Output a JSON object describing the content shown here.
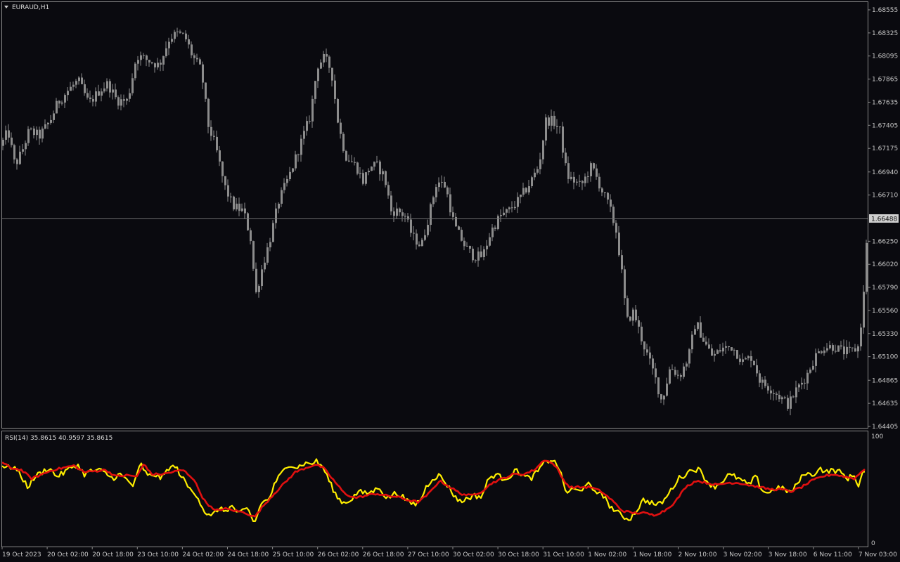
{
  "window": {
    "symbol_title": "EURAUD,H1",
    "title_arrow_icon": "triangle-down-icon"
  },
  "colors": {
    "background": "#0a0a0f",
    "frame": "#8a8a8a",
    "candle": "#8c8c8c",
    "candle_wick": "#8c8c8c",
    "bid_line": "#6e6e6e",
    "price_tag_bg": "#cfcfcf",
    "rsi_fast": "#ffee00",
    "rsi_slow": "#e01010"
  },
  "price_axis": {
    "min": 1.64405,
    "max": 1.68555,
    "ticks": [
      "1.68555",
      "1.68325",
      "1.68095",
      "1.67865",
      "1.67635",
      "1.67405",
      "1.67175",
      "1.66940",
      "1.66710",
      "1.66250",
      "1.66020",
      "1.65790",
      "1.65560",
      "1.65330",
      "1.65100",
      "1.64865",
      "1.64635",
      "1.64405"
    ],
    "current_price": "1.66488"
  },
  "rsi_panel": {
    "label": "RSI(14) 35.8615 40.9597 35.8615",
    "scale_max": "100",
    "scale_min": "0"
  },
  "time_axis": {
    "labels": [
      "19 Oct 2023",
      "20 Oct 02:00",
      "20 Oct 18:00",
      "23 Oct 10:00",
      "24 Oct 02:00",
      "24 Oct 18:00",
      "25 Oct 10:00",
      "26 Oct 02:00",
      "26 Oct 18:00",
      "27 Oct 10:00",
      "30 Oct 02:00",
      "30 Oct 18:00",
      "31 Oct 10:00",
      "1 Nov 02:00",
      "1 Nov 18:00",
      "2 Nov 10:00",
      "3 Nov 02:00",
      "3 Nov 18:00",
      "6 Nov 11:00",
      "7 Nov 03:00"
    ]
  },
  "chart_data": {
    "type": "candlestick",
    "symbol": "EURAUD",
    "timeframe": "H1",
    "ylim": [
      1.64405,
      1.68555
    ],
    "anchors": [
      [
        0,
        1.672
      ],
      [
        10,
        1.6735
      ],
      [
        20,
        1.67
      ],
      [
        30,
        1.6715
      ],
      [
        40,
        1.6735
      ],
      [
        55,
        1.673
      ],
      [
        70,
        1.6745
      ],
      [
        80,
        1.6762
      ],
      [
        95,
        1.6775
      ],
      [
        110,
        1.6785
      ],
      [
        125,
        1.6762
      ],
      [
        140,
        1.6775
      ],
      [
        152,
        1.6782
      ],
      [
        165,
        1.6765
      ],
      [
        180,
        1.6765
      ],
      [
        193,
        1.681
      ],
      [
        210,
        1.6805
      ],
      [
        225,
        1.68
      ],
      [
        240,
        1.6828
      ],
      [
        252,
        1.6832
      ],
      [
        262,
        1.6828
      ],
      [
        272,
        1.681
      ],
      [
        285,
        1.6795
      ],
      [
        295,
        1.674
      ],
      [
        305,
        1.672
      ],
      [
        318,
        1.668
      ],
      [
        330,
        1.666
      ],
      [
        345,
        1.6655
      ],
      [
        356,
        1.6625
      ],
      [
        362,
        1.657
      ],
      [
        372,
        1.66
      ],
      [
        382,
        1.6625
      ],
      [
        395,
        1.6665
      ],
      [
        410,
        1.669
      ],
      [
        425,
        1.672
      ],
      [
        440,
        1.675
      ],
      [
        450,
        1.68
      ],
      [
        460,
        1.6808
      ],
      [
        470,
        1.6795
      ],
      [
        480,
        1.674
      ],
      [
        490,
        1.671
      ],
      [
        505,
        1.67
      ],
      [
        515,
        1.6685
      ],
      [
        525,
        1.67
      ],
      [
        535,
        1.67
      ],
      [
        545,
        1.669
      ],
      [
        555,
        1.6655
      ],
      [
        565,
        1.6655
      ],
      [
        575,
        1.665
      ],
      [
        585,
        1.663
      ],
      [
        598,
        1.662
      ],
      [
        610,
        1.6655
      ],
      [
        620,
        1.6685
      ],
      [
        632,
        1.668
      ],
      [
        645,
        1.664
      ],
      [
        660,
        1.662
      ],
      [
        672,
        1.661
      ],
      [
        685,
        1.661
      ],
      [
        697,
        1.6635
      ],
      [
        710,
        1.665
      ],
      [
        722,
        1.6655
      ],
      [
        735,
        1.6665
      ],
      [
        750,
        1.668
      ],
      [
        765,
        1.67
      ],
      [
        775,
        1.6745
      ],
      [
        785,
        1.6745
      ],
      [
        795,
        1.6735
      ],
      [
        805,
        1.669
      ],
      [
        815,
        1.6685
      ],
      [
        825,
        1.668
      ],
      [
        840,
        1.67
      ],
      [
        855,
        1.6675
      ],
      [
        865,
        1.666
      ],
      [
        875,
        1.6635
      ],
      [
        882,
        1.66
      ],
      [
        890,
        1.6545
      ],
      [
        900,
        1.6555
      ],
      [
        910,
        1.653
      ],
      [
        920,
        1.651
      ],
      [
        930,
        1.649
      ],
      [
        940,
        1.6465
      ],
      [
        952,
        1.65
      ],
      [
        965,
        1.649
      ],
      [
        978,
        1.651
      ],
      [
        988,
        1.6545
      ],
      [
        1000,
        1.6525
      ],
      [
        1012,
        1.651
      ],
      [
        1025,
        1.6518
      ],
      [
        1040,
        1.652
      ],
      [
        1055,
        1.6505
      ],
      [
        1068,
        1.651
      ],
      [
        1080,
        1.6485
      ],
      [
        1095,
        1.6478
      ],
      [
        1108,
        1.647
      ],
      [
        1120,
        1.6462
      ],
      [
        1132,
        1.6478
      ],
      [
        1145,
        1.649
      ],
      [
        1158,
        1.651
      ],
      [
        1170,
        1.652
      ],
      [
        1185,
        1.652
      ],
      [
        1198,
        1.6515
      ],
      [
        1210,
        1.6515
      ],
      [
        1220,
        1.652
      ],
      [
        1228,
        1.658
      ],
      [
        1231,
        1.6625
      ]
    ],
    "rsi": {
      "period": 14,
      "values_shown": [
        35.8615,
        40.9597,
        35.8615
      ],
      "ylim": [
        0,
        100
      ],
      "fast_anchors": [
        [
          0,
          73
        ],
        [
          10,
          70
        ],
        [
          20,
          71
        ],
        [
          30,
          62
        ],
        [
          40,
          52
        ],
        [
          50,
          62
        ],
        [
          60,
          66
        ],
        [
          70,
          70
        ],
        [
          80,
          62
        ],
        [
          90,
          65
        ],
        [
          100,
          70
        ],
        [
          110,
          73
        ],
        [
          120,
          64
        ],
        [
          130,
          67
        ],
        [
          140,
          68
        ],
        [
          150,
          65
        ],
        [
          160,
          60
        ],
        [
          170,
          64
        ],
        [
          180,
          59
        ],
        [
          190,
          53
        ],
        [
          200,
          74
        ],
        [
          210,
          62
        ],
        [
          220,
          64
        ],
        [
          230,
          60
        ],
        [
          240,
          70
        ],
        [
          250,
          71
        ],
        [
          260,
          60
        ],
        [
          270,
          50
        ],
        [
          280,
          45
        ],
        [
          290,
          30
        ],
        [
          300,
          24
        ],
        [
          310,
          32
        ],
        [
          320,
          30
        ],
        [
          330,
          34
        ],
        [
          340,
          27
        ],
        [
          352,
          32
        ],
        [
          362,
          18
        ],
        [
          372,
          38
        ],
        [
          382,
          40
        ],
        [
          392,
          57
        ],
        [
          402,
          66
        ],
        [
          412,
          74
        ],
        [
          422,
          70
        ],
        [
          432,
          74
        ],
        [
          442,
          74
        ],
        [
          450,
          76
        ],
        [
          460,
          70
        ],
        [
          470,
          55
        ],
        [
          480,
          42
        ],
        [
          490,
          37
        ],
        [
          500,
          41
        ],
        [
          510,
          48
        ],
        [
          520,
          46
        ],
        [
          530,
          48
        ],
        [
          540,
          52
        ],
        [
          550,
          41
        ],
        [
          560,
          46
        ],
        [
          570,
          45
        ],
        [
          580,
          38
        ],
        [
          590,
          36
        ],
        [
          598,
          40
        ],
        [
          606,
          52
        ],
        [
          615,
          60
        ],
        [
          625,
          63
        ],
        [
          635,
          55
        ],
        [
          645,
          45
        ],
        [
          655,
          38
        ],
        [
          665,
          42
        ],
        [
          675,
          44
        ],
        [
          685,
          43
        ],
        [
          695,
          60
        ],
        [
          705,
          64
        ],
        [
          715,
          60
        ],
        [
          725,
          62
        ],
        [
          735,
          68
        ],
        [
          745,
          62
        ],
        [
          755,
          60
        ],
        [
          765,
          67
        ],
        [
          775,
          75
        ],
        [
          785,
          78
        ],
        [
          795,
          70
        ],
        [
          805,
          47
        ],
        [
          815,
          50
        ],
        [
          825,
          48
        ],
        [
          835,
          57
        ],
        [
          845,
          46
        ],
        [
          855,
          48
        ],
        [
          865,
          36
        ],
        [
          875,
          30
        ],
        [
          885,
          25
        ],
        [
          895,
          22
        ],
        [
          905,
          30
        ],
        [
          915,
          40
        ],
        [
          925,
          38
        ],
        [
          935,
          35
        ],
        [
          945,
          40
        ],
        [
          955,
          50
        ],
        [
          965,
          60
        ],
        [
          975,
          64
        ],
        [
          985,
          69
        ],
        [
          995,
          68
        ],
        [
          1005,
          58
        ],
        [
          1015,
          52
        ],
        [
          1025,
          56
        ],
        [
          1035,
          63
        ],
        [
          1045,
          62
        ],
        [
          1055,
          58
        ],
        [
          1065,
          54
        ],
        [
          1075,
          62
        ],
        [
          1085,
          48
        ],
        [
          1095,
          47
        ],
        [
          1105,
          52
        ],
        [
          1115,
          50
        ],
        [
          1125,
          47
        ],
        [
          1135,
          56
        ],
        [
          1145,
          66
        ],
        [
          1155,
          62
        ],
        [
          1165,
          70
        ],
        [
          1175,
          66
        ],
        [
          1185,
          68
        ],
        [
          1195,
          66
        ],
        [
          1205,
          60
        ],
        [
          1215,
          63
        ],
        [
          1222,
          52
        ],
        [
          1226,
          66
        ],
        [
          1231,
          66
        ]
      ],
      "slow_anchors": [
        [
          0,
          76
        ],
        [
          15,
          70
        ],
        [
          30,
          68
        ],
        [
          45,
          60
        ],
        [
          60,
          64
        ],
        [
          75,
          68
        ],
        [
          90,
          70
        ],
        [
          105,
          72
        ],
        [
          120,
          66
        ],
        [
          135,
          67
        ],
        [
          150,
          68
        ],
        [
          165,
          62
        ],
        [
          180,
          63
        ],
        [
          195,
          62
        ],
        [
          205,
          74
        ],
        [
          215,
          64
        ],
        [
          230,
          64
        ],
        [
          245,
          66
        ],
        [
          260,
          68
        ],
        [
          275,
          60
        ],
        [
          290,
          40
        ],
        [
          305,
          30
        ],
        [
          320,
          32
        ],
        [
          335,
          30
        ],
        [
          350,
          28
        ],
        [
          362,
          24
        ],
        [
          375,
          35
        ],
        [
          390,
          46
        ],
        [
          405,
          56
        ],
        [
          420,
          66
        ],
        [
          435,
          70
        ],
        [
          448,
          73
        ],
        [
          460,
          70
        ],
        [
          475,
          58
        ],
        [
          490,
          46
        ],
        [
          505,
          42
        ],
        [
          520,
          44
        ],
        [
          535,
          46
        ],
        [
          550,
          44
        ],
        [
          565,
          43
        ],
        [
          580,
          40
        ],
        [
          595,
          38
        ],
        [
          610,
          46
        ],
        [
          625,
          58
        ],
        [
          640,
          52
        ],
        [
          655,
          46
        ],
        [
          670,
          44
        ],
        [
          685,
          48
        ],
        [
          700,
          56
        ],
        [
          715,
          60
        ],
        [
          730,
          64
        ],
        [
          745,
          64
        ],
        [
          760,
          68
        ],
        [
          775,
          78
        ],
        [
          790,
          72
        ],
        [
          800,
          60
        ],
        [
          810,
          52
        ],
        [
          825,
          52
        ],
        [
          840,
          52
        ],
        [
          855,
          48
        ],
        [
          870,
          40
        ],
        [
          885,
          30
        ],
        [
          900,
          28
        ],
        [
          915,
          28
        ],
        [
          930,
          26
        ],
        [
          945,
          30
        ],
        [
          960,
          38
        ],
        [
          975,
          52
        ],
        [
          990,
          58
        ],
        [
          1005,
          56
        ],
        [
          1020,
          54
        ],
        [
          1035,
          56
        ],
        [
          1050,
          56
        ],
        [
          1065,
          54
        ],
        [
          1080,
          52
        ],
        [
          1095,
          50
        ],
        [
          1110,
          50
        ],
        [
          1125,
          48
        ],
        [
          1140,
          52
        ],
        [
          1155,
          58
        ],
        [
          1170,
          62
        ],
        [
          1185,
          64
        ],
        [
          1200,
          62
        ],
        [
          1215,
          60
        ],
        [
          1225,
          66
        ],
        [
          1231,
          70
        ]
      ]
    }
  }
}
